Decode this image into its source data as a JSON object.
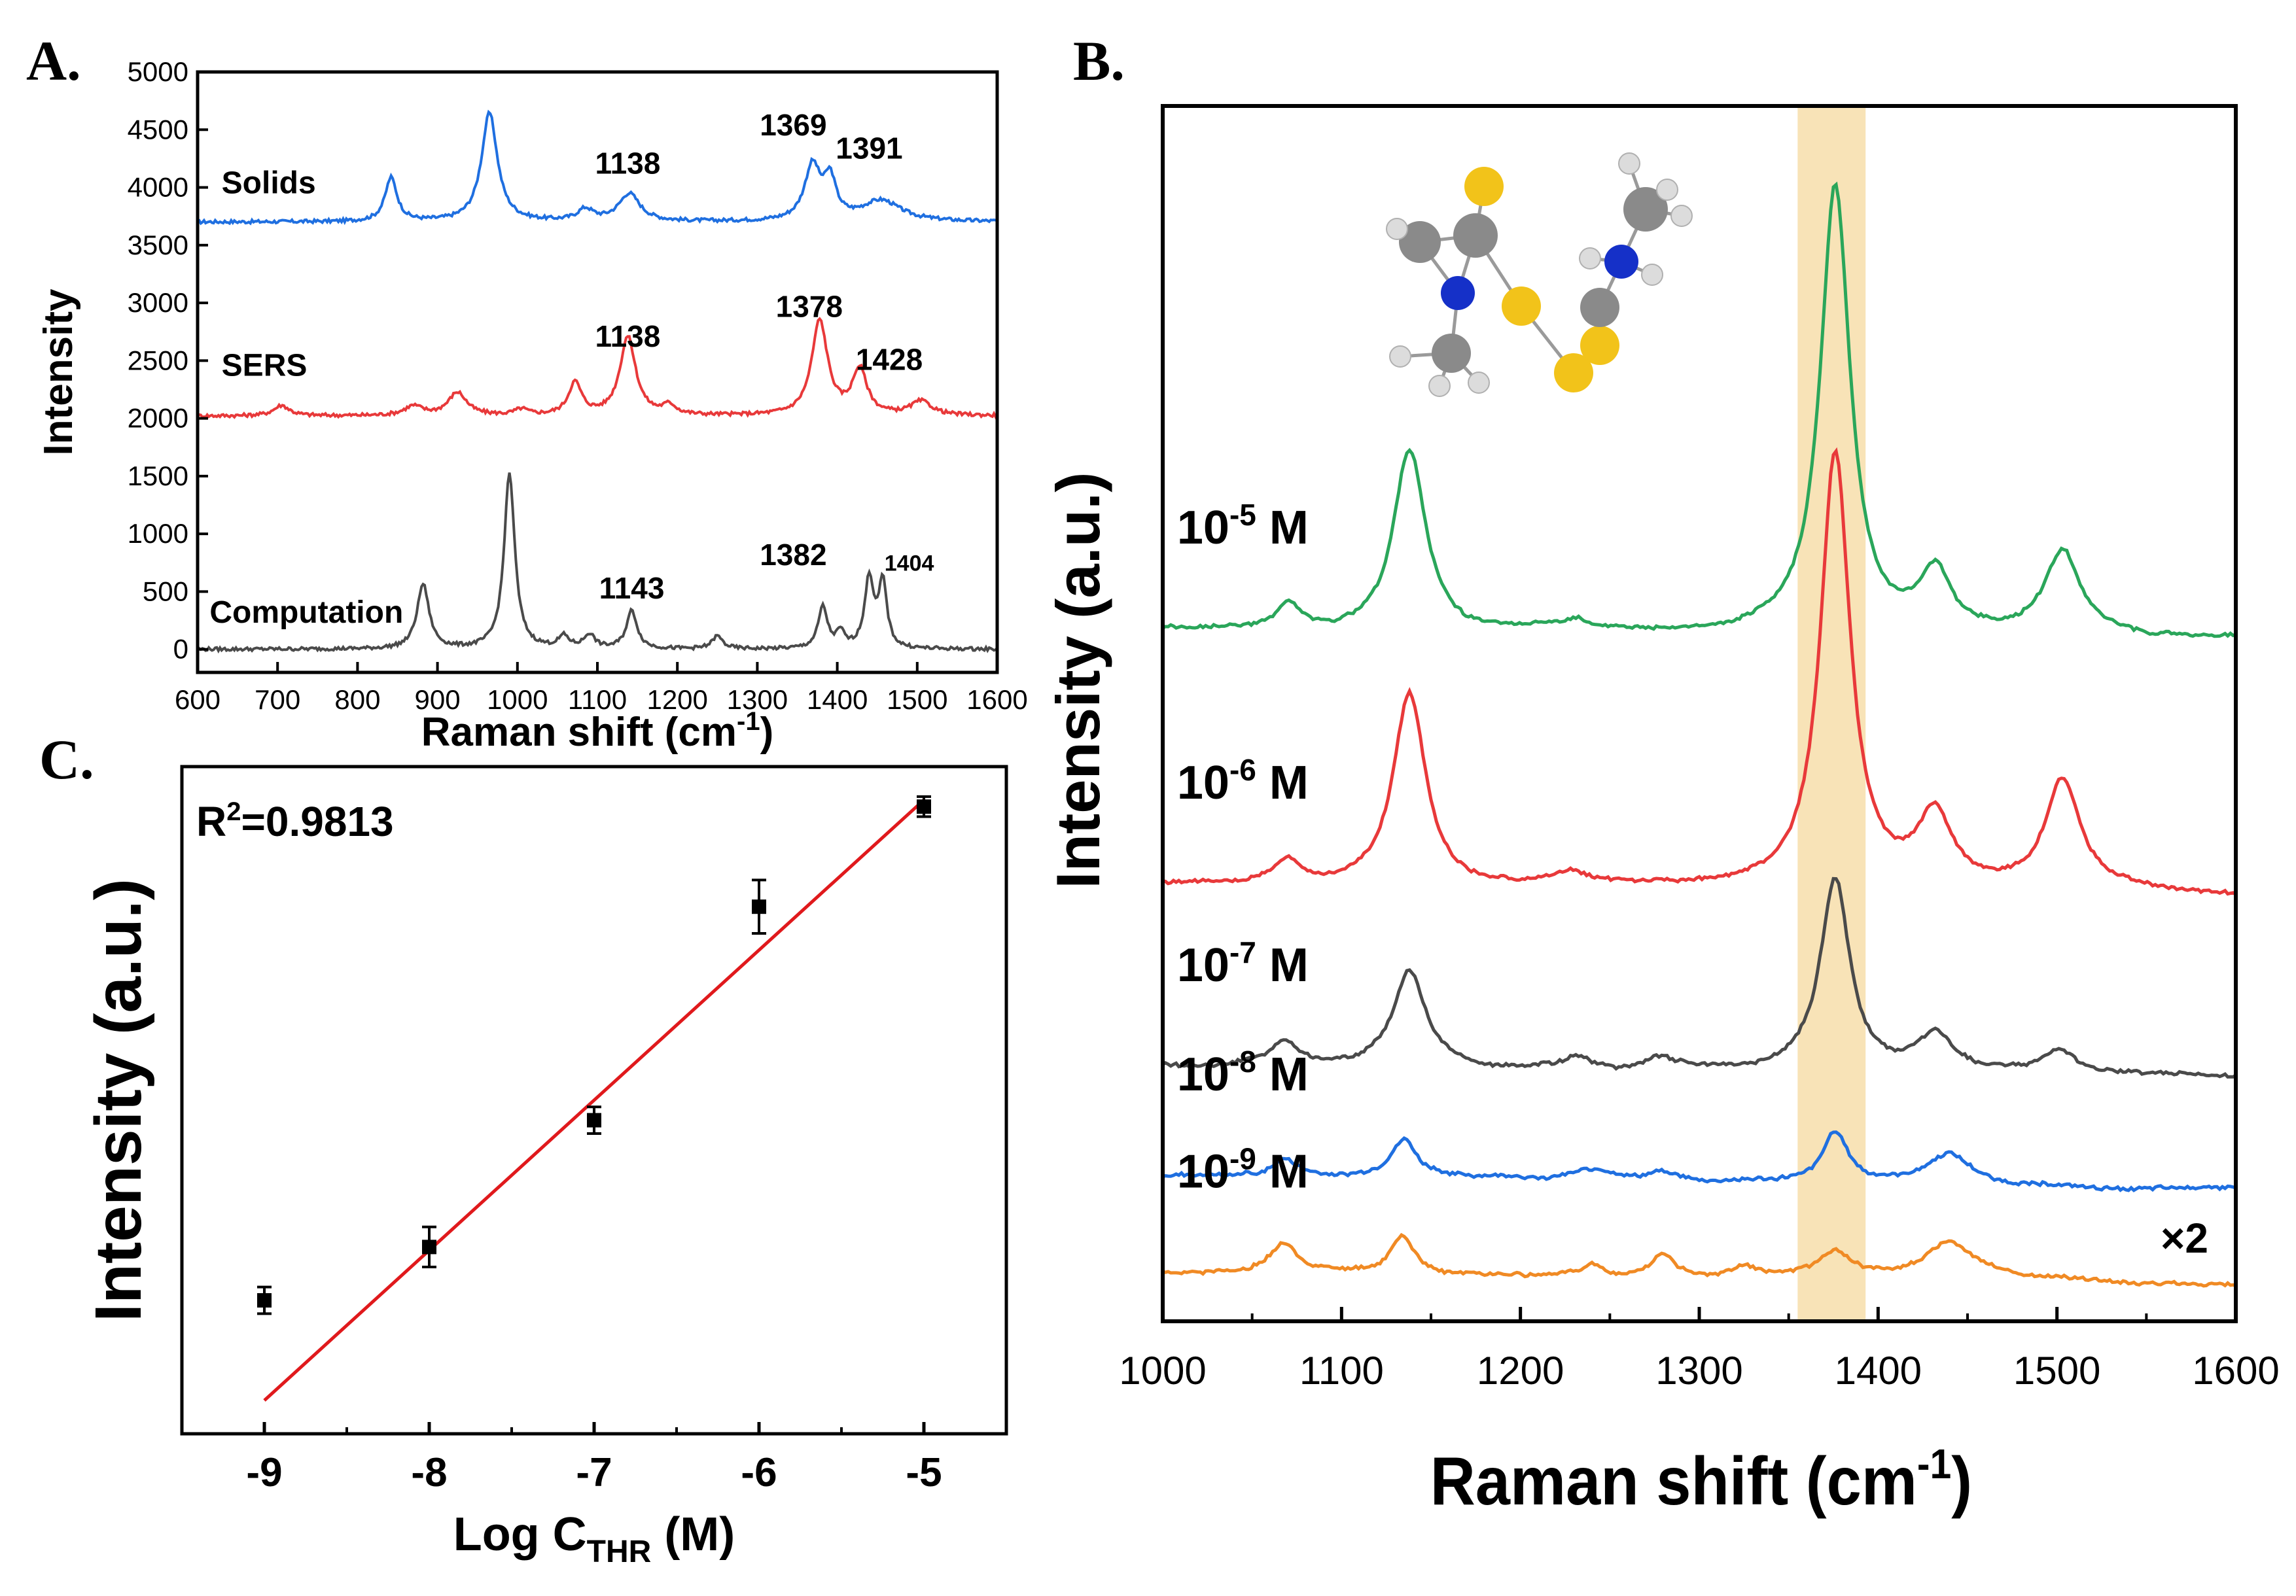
{
  "panels": {
    "a": "A.",
    "b": "B.",
    "c": "C."
  },
  "colors": {
    "solids": "#1f6fe0",
    "sers": "#e8393a",
    "computation": "#4a4a4a",
    "c5": "#2aa65a",
    "c6": "#e8393a",
    "c7": "#4a4a4a",
    "c8": "#1f6fe0",
    "c9": "#f08a24",
    "highlight": "#f8e3b7",
    "fit": "#e0191c",
    "atom_s": "#f2c31a",
    "atom_n": "#1530c8",
    "atom_c": "#8a8a8a",
    "atom_h": "#dcdcdc"
  },
  "chart_data": [
    {
      "id": "A",
      "type": "line",
      "xlabel": "Raman shift (cm",
      "xlabel_sup": "-1",
      "xlabel_close": ")",
      "ylabel": "Intensity",
      "xlim": [
        600,
        1600
      ],
      "ylim": [
        -200,
        5000
      ],
      "xticks": [
        600,
        700,
        800,
        900,
        1000,
        1100,
        1200,
        1300,
        1400,
        1500,
        1600
      ],
      "yticks": [
        0,
        500,
        1000,
        1500,
        2000,
        2500,
        3000,
        3500,
        4000,
        4500,
        5000
      ],
      "series": [
        {
          "name": "Solids",
          "color_key": "solids",
          "baseline": 3700,
          "peaks": [
            [
              842,
              380,
              9
            ],
            [
              965,
              940,
              12
            ],
            [
              1085,
              100,
              12
            ],
            [
              1140,
              240,
              16
            ],
            [
              1369,
              470,
              12
            ],
            [
              1391,
              330,
              9
            ],
            [
              1455,
              180,
              30
            ]
          ]
        },
        {
          "name": "SERS",
          "color_key": "sers",
          "baseline": 2020,
          "peaks": [
            [
              705,
              90,
              12
            ],
            [
              870,
              80,
              14
            ],
            [
              925,
              200,
              14
            ],
            [
              1005,
              50,
              10
            ],
            [
              1072,
              280,
              10
            ],
            [
              1138,
              680,
              12
            ],
            [
              1190,
              80,
              10
            ],
            [
              1378,
              820,
              12
            ],
            [
              1428,
              390,
              11
            ],
            [
              1505,
              120,
              16
            ]
          ]
        },
        {
          "name": "Computation",
          "color_key": "computation",
          "baseline": 0,
          "peaks": [
            [
              882,
              560,
              9
            ],
            [
              990,
              1520,
              8
            ],
            [
              1058,
              100,
              8
            ],
            [
              1090,
              120,
              8
            ],
            [
              1143,
              330,
              8
            ],
            [
              1250,
              110,
              8
            ],
            [
              1382,
              360,
              7
            ],
            [
              1404,
              130,
              6
            ],
            [
              1440,
              600,
              7
            ],
            [
              1457,
              560,
              6
            ]
          ]
        }
      ],
      "annotations": [
        {
          "text": "1138",
          "x": 1138,
          "y": 4120
        },
        {
          "text": "1369",
          "x": 1345,
          "y": 4450
        },
        {
          "text": "1391",
          "x": 1440,
          "y": 4250
        },
        {
          "text": "1138",
          "x": 1138,
          "y": 2620
        },
        {
          "text": "1378",
          "x": 1365,
          "y": 2880
        },
        {
          "text": "1428",
          "x": 1465,
          "y": 2420
        },
        {
          "text": "1143",
          "x": 1143,
          "y": 440
        },
        {
          "text": "1382",
          "x": 1345,
          "y": 730
        },
        {
          "text": "1404",
          "x": 1490,
          "y": 680
        }
      ],
      "series_labels": [
        {
          "text": "Solids",
          "x": 630,
          "y": 3950
        },
        {
          "text": "SERS",
          "x": 630,
          "y": 2370
        },
        {
          "text": "Computation",
          "x": 615,
          "y": 230
        }
      ]
    },
    {
      "id": "B",
      "type": "line",
      "xlabel": "Raman shift (cm",
      "xlabel_sup": "-1",
      "xlabel_close": ")",
      "ylabel": "Intensity (a.u.)",
      "xlim": [
        1000,
        1600
      ],
      "ylim": [
        0,
        100
      ],
      "xticks": [
        1000,
        1100,
        1200,
        1300,
        1400,
        1500,
        1600
      ],
      "highlight_band": [
        1355,
        1393
      ],
      "multiplier_label": "×2",
      "series": [
        {
          "name": "10-5 M",
          "base": "10",
          "exp": "-5",
          "unit": "M",
          "color_key": "c5",
          "baseline": 57,
          "peaks": [
            [
              1070,
              2,
              8
            ],
            [
              1138,
              15,
              11
            ],
            [
              1230,
              1,
              12
            ],
            [
              1376,
              37,
              10
            ],
            [
              1432,
              5,
              11
            ],
            [
              1503,
              7,
              12
            ]
          ]
        },
        {
          "name": "10-6 M",
          "base": "10",
          "exp": "-6",
          "unit": "M",
          "color_key": "c6",
          "baseline": 36,
          "peaks": [
            [
              1070,
              2,
              9
            ],
            [
              1138,
              16,
              11
            ],
            [
              1228,
              1,
              12
            ],
            [
              1376,
              36,
              10
            ],
            [
              1432,
              6,
              12
            ],
            [
              1503,
              9,
              12
            ]
          ]
        },
        {
          "name": "10-7 M",
          "base": "10",
          "exp": "-7",
          "unit": "M",
          "color_key": "c7",
          "baseline": 21,
          "peaks": [
            [
              1068,
              2,
              9
            ],
            [
              1138,
              8,
              11
            ],
            [
              1232,
              1,
              10
            ],
            [
              1278,
              1,
              10
            ],
            [
              1376,
              16,
              10
            ],
            [
              1432,
              3,
              12
            ],
            [
              1502,
              2,
              12
            ]
          ]
        },
        {
          "name": "10-8 M",
          "base": "10",
          "exp": "-8",
          "unit": "M",
          "color_key": "c8",
          "baseline": 12,
          "peaks": [
            [
              1068,
              1.5,
              8
            ],
            [
              1135,
              3,
              8
            ],
            [
              1240,
              0.8,
              10
            ],
            [
              1280,
              1,
              10
            ],
            [
              1376,
              4,
              8
            ],
            [
              1440,
              2.5,
              14
            ]
          ]
        },
        {
          "name": "10-9 M",
          "base": "10",
          "exp": "-9",
          "unit": "M",
          "color_key": "c9",
          "baseline": 4,
          "peaks": [
            [
              1068,
              2.5,
              10
            ],
            [
              1134,
              3,
              8
            ],
            [
              1240,
              1,
              8
            ],
            [
              1280,
              2,
              8
            ],
            [
              1325,
              1,
              10
            ],
            [
              1376,
              2,
              12
            ],
            [
              1440,
              3,
              18
            ]
          ]
        }
      ]
    },
    {
      "id": "C",
      "type": "scatter",
      "xlabel": "Log C",
      "xlabel_sub": "THR",
      "xlabel_close": " (M)",
      "ylabel": "Intensity (a.u.)",
      "xlim": [
        -9.5,
        -4.5
      ],
      "ylim": [
        0,
        100
      ],
      "xticks": [
        -9,
        -8,
        -7,
        -6,
        -5
      ],
      "r2_prefix": "R",
      "r2_sup": "2",
      "r2_value": "=0.9813",
      "x": [
        -9,
        -8,
        -7,
        -6,
        -5
      ],
      "y": [
        20,
        28,
        47,
        79,
        94
      ],
      "yerr": [
        2,
        3,
        2,
        4,
        1.5
      ],
      "fit": {
        "x": [
          -9,
          -5
        ],
        "y": [
          5,
          95
        ]
      }
    }
  ]
}
